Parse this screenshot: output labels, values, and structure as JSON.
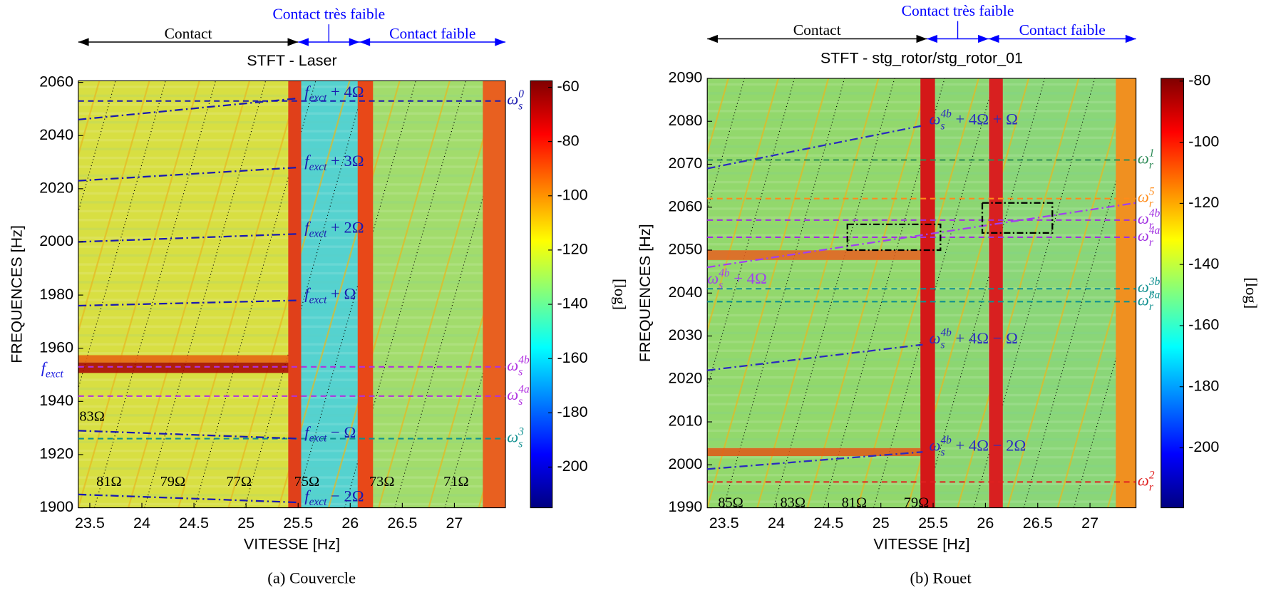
{
  "chart_data": [
    {
      "type": "spectrogram",
      "title": "STFT - Laser",
      "caption": "(a) Couvercle",
      "x_label": "VITESSE [Hz]",
      "y_label": "FREQUENCES [Hz]",
      "colorbar_label": "[log]",
      "xlim": [
        23.39,
        27.49
      ],
      "xticks": [
        23.5,
        24,
        24.5,
        25,
        25.5,
        26,
        26.5,
        27
      ],
      "ylim": [
        1900,
        2060.6
      ],
      "yticks": [
        1900,
        1920,
        1940,
        1960,
        1980,
        2000,
        2020,
        2040,
        2060
      ],
      "clim": [
        -215,
        -57.6
      ],
      "cticks": [
        -200,
        -180,
        -160,
        -140,
        -120,
        -100,
        -80,
        -60
      ],
      "regions": [
        {
          "label": "Contact",
          "from": 23.39,
          "to": 25.5,
          "color": "#000000"
        },
        {
          "label": "Contact très faible",
          "from": 25.5,
          "to": 26.09,
          "color": "#0000ff"
        },
        {
          "label": "Contact faible",
          "from": 26.09,
          "to": 27.49,
          "color": "#0000ff"
        }
      ],
      "levels": [
        {
          "y": 2053,
          "color": "#1a1ab0",
          "label": {
            "main": "ω",
            "sub": "s",
            "sup": "0"
          }
        },
        {
          "y": 1953,
          "color": "#b030e0",
          "label": {
            "main": "ω",
            "sub": "s",
            "sup": "4b"
          }
        },
        {
          "y": 1942,
          "color": "#b030e0",
          "label": {
            "main": "ω",
            "sub": "s",
            "sup": "4a"
          }
        },
        {
          "y": 1926,
          "color": "#109090",
          "label": {
            "main": "ω",
            "sub": "s",
            "sup": "3"
          }
        }
      ],
      "axis_markers": [
        {
          "y": 1952,
          "color": "#1a1ae0",
          "label": {
            "main": "f",
            "sub": "exct"
          }
        }
      ],
      "tracks": [
        {
          "x": [
            23.39,
            25.5
          ],
          "y": [
            2046,
            2054
          ],
          "color": "#1a1ab0",
          "label_at": "end",
          "label": {
            "main": "f",
            "sub": "exct",
            "tail": " + 4Ω"
          }
        },
        {
          "x": [
            23.39,
            25.5
          ],
          "y": [
            2023,
            2028
          ],
          "color": "#1a1ab0",
          "label_at": "end",
          "label": {
            "main": "f",
            "sub": "exct",
            "tail": " + 3Ω"
          }
        },
        {
          "x": [
            23.39,
            25.5
          ],
          "y": [
            2000,
            2003
          ],
          "color": "#1a1ab0",
          "label_at": "end",
          "label": {
            "main": "f",
            "sub": "exct",
            "tail": " + 2Ω"
          }
        },
        {
          "x": [
            23.39,
            25.5
          ],
          "y": [
            1976,
            1978
          ],
          "color": "#1a1ab0",
          "label_at": "end",
          "label": {
            "main": "f",
            "sub": "exct",
            "tail": " + Ω"
          }
        },
        {
          "x": [
            23.39,
            25.5
          ],
          "y": [
            1929,
            1926
          ],
          "color": "#1a1ab0",
          "label_at": "end",
          "label": {
            "main": "f",
            "sub": "exct",
            "tail": " − Ω"
          }
        },
        {
          "x": [
            23.39,
            25.5
          ],
          "y": [
            1905,
            1902
          ],
          "color": "#1a1ab0",
          "label_at": "end",
          "label": {
            "main": "f",
            "sub": "exct",
            "tail": " − 2Ω"
          }
        }
      ],
      "boxes": [],
      "orders": [
        "83Ω",
        "81Ω",
        "79Ω",
        "77Ω",
        "75Ω",
        "73Ω",
        "71Ω"
      ]
    },
    {
      "type": "spectrogram",
      "title": "STFT - stg_rotor/stg_rotor_01",
      "caption": "(b) Rouet",
      "x_label": "VITESSE [Hz]",
      "y_label": "FREQUENCES [Hz]",
      "colorbar_label": "[log]",
      "xlim": [
        23.34,
        27.44
      ],
      "xticks": [
        23.5,
        24,
        24.5,
        25,
        25.5,
        26,
        26.5,
        27
      ],
      "ylim": [
        1990,
        2090
      ],
      "yticks": [
        1990,
        2000,
        2010,
        2020,
        2030,
        2040,
        2050,
        2060,
        2070,
        2080,
        2090
      ],
      "clim": [
        -219.6,
        -79.1
      ],
      "cticks": [
        -200,
        -180,
        -160,
        -140,
        -120,
        -100,
        -80
      ],
      "regions": [
        {
          "label": "Contact",
          "from": 23.34,
          "to": 25.44,
          "color": "#000000"
        },
        {
          "label": "Contact très faible",
          "from": 25.44,
          "to": 26.03,
          "color": "#0000ff"
        },
        {
          "label": "Contact faible",
          "from": 26.03,
          "to": 27.44,
          "color": "#0000ff"
        }
      ],
      "levels": [
        {
          "y": 2071,
          "color": "#2e8b57",
          "label": {
            "main": "ω",
            "sub": "r",
            "sup": "1"
          }
        },
        {
          "y": 2062,
          "color": "#ff8c1a",
          "label": {
            "main": "ω",
            "sub": "r",
            "sup": "5"
          }
        },
        {
          "y": 2057,
          "color": "#a030e0",
          "label": {
            "main": "ω",
            "sub": "r",
            "sup": "4b"
          }
        },
        {
          "y": 2053,
          "color": "#a030e0",
          "label": {
            "main": "ω",
            "sub": "r",
            "sup": "4a"
          }
        },
        {
          "y": 2041,
          "color": "#109090",
          "label": {
            "main": "ω",
            "sub": "r",
            "sup": "3b"
          }
        },
        {
          "y": 2038,
          "color": "#109090",
          "label": {
            "main": "ω",
            "sub": "r",
            "sup": "3a"
          }
        },
        {
          "y": 1996,
          "color": "#e02020",
          "label": {
            "main": "ω",
            "sub": "r",
            "sup": "2"
          }
        }
      ],
      "axis_markers": [],
      "tracks": [
        {
          "x": [
            23.34,
            25.4
          ],
          "y": [
            2069,
            2079
          ],
          "color": "#2a2ac0",
          "label_at": "end",
          "label": {
            "main": "ω",
            "sub": "s",
            "sup": "4b",
            "tail": " + 4Ω + Ω"
          }
        },
        {
          "x": [
            23.34,
            27.44
          ],
          "y": [
            2046,
            2061
          ],
          "color": "#a040f0",
          "label_at": "start",
          "label": {
            "main": "ω",
            "sub": "s",
            "sup": "4b",
            "tail": " + 4Ω"
          }
        },
        {
          "x": [
            23.34,
            25.4
          ],
          "y": [
            2022,
            2028
          ],
          "color": "#2a2ac0",
          "label_at": "end",
          "label": {
            "main": "ω",
            "sub": "s",
            "sup": "4b",
            "tail": " + 4Ω − Ω"
          }
        },
        {
          "x": [
            23.34,
            25.4
          ],
          "y": [
            1999,
            2003
          ],
          "color": "#2a2ac0",
          "label_at": "end",
          "label": {
            "main": "ω",
            "sub": "s",
            "sup": "4b",
            "tail": " + 4Ω − 2Ω"
          }
        }
      ],
      "boxes": [
        {
          "x": [
            24.68,
            25.57
          ],
          "y": [
            2050,
            2056
          ]
        },
        {
          "x": [
            25.97,
            26.64
          ],
          "y": [
            2054,
            2061
          ]
        }
      ],
      "orders": [
        "85Ω",
        "83Ω",
        "81Ω",
        "79Ω"
      ]
    }
  ]
}
